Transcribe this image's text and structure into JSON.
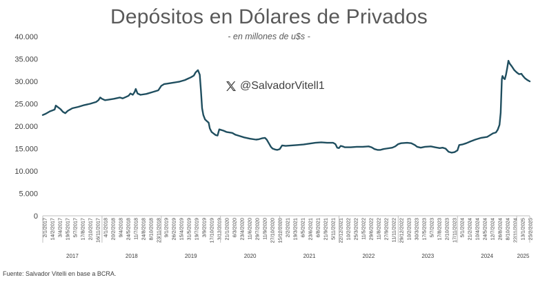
{
  "chart_data": {
    "type": "line",
    "title": "Depósitos en Dólares de Privados",
    "subtitle": "- en millones de u$s -",
    "watermark": "@SalvadorVitell1",
    "source": "Fuente: Salvador Vitelli en base a BCRA.",
    "ylim": [
      0,
      40000
    ],
    "y_ticks": [
      "40.000",
      "35.000",
      "30.000",
      "25.000",
      "20.000",
      "15.000",
      "10.000",
      "5.000",
      "0"
    ],
    "line_color": "#1f4e5f",
    "x_ticks": [
      "2/1/2017",
      "14/2/2017",
      "3/4/2017",
      "19/5/2017",
      "5/7/2017",
      "17/8/2017",
      "2/10/2017",
      "16/11/2017",
      "4/1/2018",
      "20/2/2018",
      "9/4/2018",
      "24/5/2018",
      "11/7/2018",
      "24/8/2018",
      "8/10/2018",
      "23/11/2018",
      "9/1/2019",
      "26/2/2019",
      "15/4/2019",
      "31/5/2019",
      "19/7/2019",
      "3/9/2019",
      "17/10/2019",
      "3/12/2019",
      "21/1/2020",
      "6/3/2020",
      "23/4/2020",
      "11/6/2020",
      "29/7/2020",
      "11/9/2020",
      "27/10/2020",
      "15/12/2020",
      "2/2/2021",
      "19/3/2021",
      "6/5/2021",
      "23/6/2021",
      "6/8/2021",
      "21/9/2021",
      "5/11/2021",
      "22/12/2021",
      "10/2/2022",
      "25/3/2022",
      "11/5/2022",
      "29/6/2022",
      "11/8/2022",
      "27/9/2022",
      "11/11/2022",
      "29/12/2022",
      "10/2/2023",
      "30/3/2023",
      "17/5/2023",
      "5/7/2023",
      "17/8/2023",
      "2/10/2023",
      "17/11/2023",
      "5/1/2024",
      "21/2/2024",
      "10/4/2024",
      "24/5/2024",
      "12/7/2024",
      "26/8/2024",
      "8/10/2024",
      "22/11/2024",
      "13/1/2025",
      "25/2/2025"
    ],
    "years": [
      "2017",
      "2018",
      "2019",
      "2020",
      "2021",
      "2022",
      "2023",
      "2024",
      "2025"
    ],
    "series": [
      {
        "values": [
          [
            2017.0,
            22500
          ],
          [
            2017.04,
            22700
          ],
          [
            2017.08,
            23000
          ],
          [
            2017.12,
            23300
          ],
          [
            2017.16,
            23500
          ],
          [
            2017.2,
            23700
          ],
          [
            2017.22,
            24600
          ],
          [
            2017.26,
            24200
          ],
          [
            2017.3,
            23800
          ],
          [
            2017.34,
            23200
          ],
          [
            2017.38,
            22900
          ],
          [
            2017.42,
            23400
          ],
          [
            2017.46,
            23700
          ],
          [
            2017.5,
            24000
          ],
          [
            2017.6,
            24300
          ],
          [
            2017.7,
            24700
          ],
          [
            2017.8,
            25000
          ],
          [
            2017.9,
            25400
          ],
          [
            2017.94,
            25800
          ],
          [
            2017.97,
            26400
          ],
          [
            2018.0,
            26100
          ],
          [
            2018.05,
            25800
          ],
          [
            2018.1,
            25900
          ],
          [
            2018.2,
            26100
          ],
          [
            2018.3,
            26400
          ],
          [
            2018.35,
            26200
          ],
          [
            2018.4,
            26500
          ],
          [
            2018.45,
            26800
          ],
          [
            2018.48,
            27300
          ],
          [
            2018.52,
            27000
          ],
          [
            2018.55,
            27600
          ],
          [
            2018.57,
            28300
          ],
          [
            2018.6,
            27300
          ],
          [
            2018.65,
            27000
          ],
          [
            2018.75,
            27200
          ],
          [
            2018.85,
            27600
          ],
          [
            2018.95,
            28000
          ],
          [
            2019.0,
            29000
          ],
          [
            2019.05,
            29400
          ],
          [
            2019.1,
            29500
          ],
          [
            2019.2,
            29700
          ],
          [
            2019.3,
            29900
          ],
          [
            2019.4,
            30300
          ],
          [
            2019.45,
            30600
          ],
          [
            2019.5,
            30900
          ],
          [
            2019.55,
            31300
          ],
          [
            2019.58,
            32000
          ],
          [
            2019.62,
            32500
          ],
          [
            2019.65,
            31500
          ],
          [
            2019.67,
            28000
          ],
          [
            2019.69,
            24000
          ],
          [
            2019.71,
            22500
          ],
          [
            2019.74,
            21500
          ],
          [
            2019.78,
            21000
          ],
          [
            2019.8,
            20800
          ],
          [
            2019.82,
            19500
          ],
          [
            2019.85,
            18700
          ],
          [
            2019.88,
            18400
          ],
          [
            2019.92,
            18000
          ],
          [
            2019.95,
            17900
          ],
          [
            2019.98,
            19300
          ],
          [
            2020.0,
            19200
          ],
          [
            2020.05,
            19000
          ],
          [
            2020.1,
            18700
          ],
          [
            2020.2,
            18500
          ],
          [
            2020.25,
            18100
          ],
          [
            2020.3,
            17900
          ],
          [
            2020.4,
            17500
          ],
          [
            2020.5,
            17200
          ],
          [
            2020.6,
            17000
          ],
          [
            2020.65,
            17100
          ],
          [
            2020.7,
            17300
          ],
          [
            2020.75,
            17400
          ],
          [
            2020.78,
            17000
          ],
          [
            2020.82,
            16100
          ],
          [
            2020.85,
            15400
          ],
          [
            2020.88,
            15000
          ],
          [
            2020.92,
            14800
          ],
          [
            2020.96,
            14700
          ],
          [
            2021.0,
            14900
          ],
          [
            2021.04,
            15700
          ],
          [
            2021.1,
            15600
          ],
          [
            2021.2,
            15700
          ],
          [
            2021.3,
            15800
          ],
          [
            2021.4,
            15900
          ],
          [
            2021.5,
            16100
          ],
          [
            2021.6,
            16300
          ],
          [
            2021.7,
            16400
          ],
          [
            2021.8,
            16300
          ],
          [
            2021.9,
            16300
          ],
          [
            2021.94,
            16000
          ],
          [
            2021.97,
            15200
          ],
          [
            2022.0,
            15100
          ],
          [
            2022.03,
            15600
          ],
          [
            2022.06,
            15500
          ],
          [
            2022.1,
            15300
          ],
          [
            2022.2,
            15300
          ],
          [
            2022.3,
            15400
          ],
          [
            2022.4,
            15400
          ],
          [
            2022.5,
            15500
          ],
          [
            2022.55,
            15300
          ],
          [
            2022.6,
            14900
          ],
          [
            2022.65,
            14700
          ],
          [
            2022.7,
            14700
          ],
          [
            2022.75,
            14900
          ],
          [
            2022.8,
            15000
          ],
          [
            2022.9,
            15200
          ],
          [
            2022.95,
            15500
          ],
          [
            2023.0,
            16000
          ],
          [
            2023.05,
            16200
          ],
          [
            2023.15,
            16300
          ],
          [
            2023.22,
            16200
          ],
          [
            2023.28,
            15800
          ],
          [
            2023.32,
            15400
          ],
          [
            2023.38,
            15200
          ],
          [
            2023.45,
            15400
          ],
          [
            2023.55,
            15500
          ],
          [
            2023.62,
            15300
          ],
          [
            2023.7,
            15100
          ],
          [
            2023.75,
            15200
          ],
          [
            2023.8,
            15000
          ],
          [
            2023.85,
            14300
          ],
          [
            2023.9,
            14100
          ],
          [
            2023.95,
            14200
          ],
          [
            2024.0,
            14600
          ],
          [
            2024.03,
            15800
          ],
          [
            2024.08,
            15900
          ],
          [
            2024.15,
            16200
          ],
          [
            2024.22,
            16600
          ],
          [
            2024.3,
            17000
          ],
          [
            2024.4,
            17400
          ],
          [
            2024.5,
            17600
          ],
          [
            2024.55,
            18000
          ],
          [
            2024.6,
            18400
          ],
          [
            2024.65,
            18600
          ],
          [
            2024.68,
            19200
          ],
          [
            2024.71,
            20300
          ],
          [
            2024.73,
            23000
          ],
          [
            2024.74,
            27000
          ],
          [
            2024.75,
            30500
          ],
          [
            2024.76,
            31200
          ],
          [
            2024.78,
            30700
          ],
          [
            2024.8,
            30500
          ],
          [
            2024.82,
            31500
          ],
          [
            2024.84,
            33000
          ],
          [
            2024.86,
            34600
          ],
          [
            2024.88,
            34000
          ],
          [
            2024.92,
            33300
          ],
          [
            2024.96,
            32500
          ],
          [
            2025.0,
            32000
          ],
          [
            2025.04,
            31600
          ],
          [
            2025.08,
            31700
          ],
          [
            2025.1,
            31300
          ],
          [
            2025.14,
            30700
          ],
          [
            2025.18,
            30300
          ],
          [
            2025.22,
            30000
          ]
        ]
      }
    ]
  }
}
